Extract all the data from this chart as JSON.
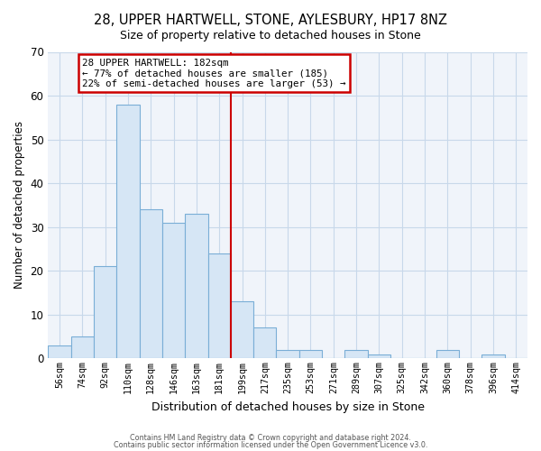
{
  "title": "28, UPPER HARTWELL, STONE, AYLESBURY, HP17 8NZ",
  "subtitle": "Size of property relative to detached houses in Stone",
  "xlabel": "Distribution of detached houses by size in Stone",
  "ylabel": "Number of detached properties",
  "bar_color": "#d6e6f5",
  "bar_edge_color": "#7aaed6",
  "bin_labels": [
    "56sqm",
    "74sqm",
    "92sqm",
    "110sqm",
    "128sqm",
    "146sqm",
    "163sqm",
    "181sqm",
    "199sqm",
    "217sqm",
    "235sqm",
    "253sqm",
    "271sqm",
    "289sqm",
    "307sqm",
    "325sqm",
    "342sqm",
    "360sqm",
    "378sqm",
    "396sqm",
    "414sqm"
  ],
  "bar_values": [
    3,
    5,
    21,
    58,
    34,
    31,
    33,
    24,
    13,
    7,
    2,
    2,
    0,
    2,
    1,
    0,
    0,
    2,
    0,
    1,
    0
  ],
  "ylim": [
    0,
    70
  ],
  "yticks": [
    0,
    10,
    20,
    30,
    40,
    50,
    60,
    70
  ],
  "property_line_bin": 7,
  "annotation_title": "28 UPPER HARTWELL: 182sqm",
  "annotation_line1": "← 77% of detached houses are smaller (185)",
  "annotation_line2": "22% of semi-detached houses are larger (53) →",
  "annotation_box_color": "#ffffff",
  "annotation_box_edge_color": "#cc0000",
  "property_line_color": "#cc0000",
  "footer1": "Contains HM Land Registry data © Crown copyright and database right 2024.",
  "footer2": "Contains public sector information licensed under the Open Government Licence v3.0.",
  "bg_color": "#f0f4fa"
}
